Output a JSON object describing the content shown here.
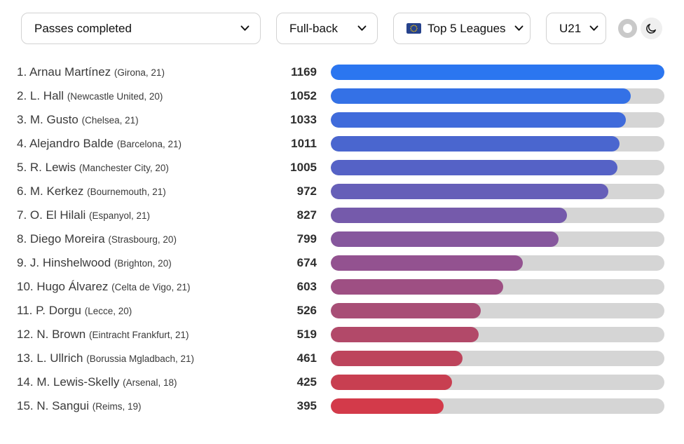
{
  "controls": {
    "stat_select": {
      "value": "Passes completed"
    },
    "position_select": {
      "value": "Full-back"
    },
    "league_select": {
      "value": "Top 5 Leagues"
    },
    "age_select": {
      "value": "U21"
    }
  },
  "icons": {
    "dropdown": "chevron-down",
    "league_flag": "eu-flag",
    "theme_light": "ring",
    "theme_dark": "crescent-moon"
  },
  "colors": {
    "track": "#d5d5d5",
    "label_text": "#3a3a3a",
    "select_border": "#d2d2d2",
    "flag_blue": "#26428c",
    "flag_stars": "#ffcc00"
  },
  "chart_data": {
    "type": "bar",
    "orientation": "horizontal",
    "title": "Passes completed",
    "filters": [
      "Full-back",
      "Top 5 Leagues",
      "U21"
    ],
    "value_range": [
      0,
      1169
    ],
    "max_value": 1169,
    "grid": false,
    "legend": false,
    "players": [
      {
        "rank": 1,
        "name": "Arnau Martínez",
        "club": "Girona",
        "age": 21,
        "value": 1169,
        "color": "#2b76f0"
      },
      {
        "rank": 2,
        "name": "L. Hall",
        "club": "Newcastle United",
        "age": 20,
        "value": 1052,
        "color": "#3471e6"
      },
      {
        "rank": 3,
        "name": "M. Gusto",
        "club": "Chelsea",
        "age": 21,
        "value": 1033,
        "color": "#3f6bdb"
      },
      {
        "rank": 4,
        "name": "Alejandro Balde",
        "club": "Barcelona",
        "age": 21,
        "value": 1011,
        "color": "#4a66cf"
      },
      {
        "rank": 5,
        "name": "R. Lewis",
        "club": "Manchester City",
        "age": 20,
        "value": 1005,
        "color": "#5562c6"
      },
      {
        "rank": 6,
        "name": "M. Kerkez",
        "club": "Bournemouth",
        "age": 21,
        "value": 972,
        "color": "#665fb8"
      },
      {
        "rank": 7,
        "name": "O. El Hilali",
        "club": "Espanyol",
        "age": 21,
        "value": 827,
        "color": "#755aab"
      },
      {
        "rank": 8,
        "name": "Diego Moreira",
        "club": "Strasbourg",
        "age": 20,
        "value": 799,
        "color": "#86579d"
      },
      {
        "rank": 9,
        "name": "J. Hinshelwood",
        "club": "Brighton",
        "age": 20,
        "value": 674,
        "color": "#935290"
      },
      {
        "rank": 10,
        "name": "Hugo Álvarez",
        "club": "Celta de Vigo",
        "age": 21,
        "value": 603,
        "color": "#9e4f83"
      },
      {
        "rank": 11,
        "name": "P. Dorgu",
        "club": "Lecce",
        "age": 20,
        "value": 526,
        "color": "#a84e76"
      },
      {
        "rank": 12,
        "name": "N. Brown",
        "club": "Eintracht Frankfurt",
        "age": 21,
        "value": 519,
        "color": "#b24969"
      },
      {
        "rank": 13,
        "name": "L. Ullrich",
        "club": "Borussia Mgladbach",
        "age": 21,
        "value": 461,
        "color": "#bd445c"
      },
      {
        "rank": 14,
        "name": "M. Lewis-Skelly",
        "club": "Arsenal",
        "age": 18,
        "value": 425,
        "color": "#c83f51"
      },
      {
        "rank": 15,
        "name": "N. Sangui",
        "club": "Reims",
        "age": 19,
        "value": 395,
        "color": "#d33a4a"
      }
    ]
  }
}
